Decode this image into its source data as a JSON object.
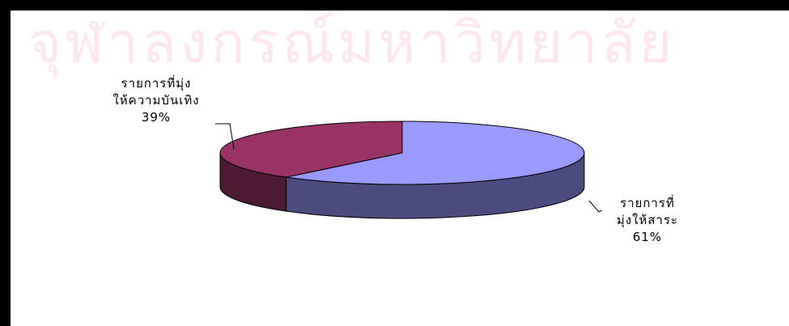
{
  "watermark": "จุฬาลงกรณ์มหาวิทยาลัย",
  "chart_data": {
    "type": "pie",
    "title": "",
    "three_d": true,
    "start_angle_deg": -90,
    "direction": "clockwise",
    "slices": [
      {
        "label": "รายการที่มุ่งให้สาระ",
        "label_lines": [
          "รายการที่",
          "มุ่งให้สาระ"
        ],
        "value": 61,
        "percent_label": "61%",
        "color_top": "#9999ff",
        "color_side": "#4b4b80"
      },
      {
        "label": "รายการที่มุ่งให้ความบันเทิง",
        "label_lines": [
          "รายการที่มุ่ง",
          "ให้ความบันเทิง"
        ],
        "value": 39,
        "percent_label": "39%",
        "color_top": "#993366",
        "color_side": "#4d1a33"
      }
    ]
  }
}
